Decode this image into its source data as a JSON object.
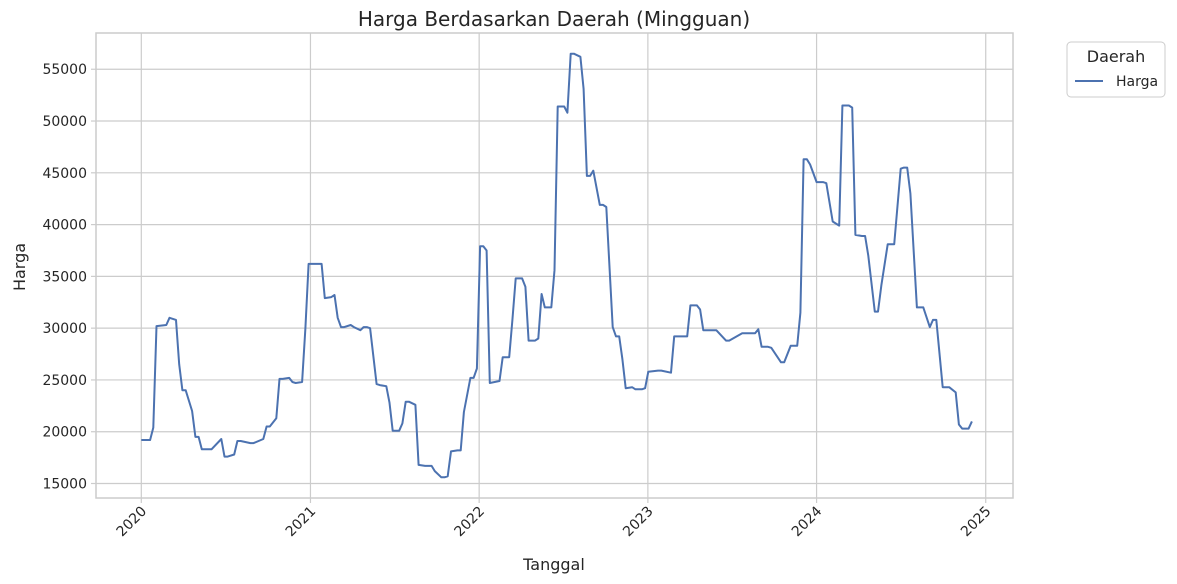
{
  "chart_data": {
    "type": "line",
    "title": "Harga Berdasarkan Daerah (Mingguan)",
    "xlabel": "Tanggal",
    "ylabel": "Harga",
    "xlim": [
      "2019-09-25",
      "2025-03-01"
    ],
    "ylim": [
      13600,
      58500
    ],
    "x_ticks": [
      "2020",
      "2021",
      "2022",
      "2023",
      "2024",
      "2025"
    ],
    "y_ticks": [
      15000,
      20000,
      25000,
      30000,
      35000,
      40000,
      45000,
      50000,
      55000
    ],
    "grid": true,
    "legend": {
      "title": "Daerah",
      "placement": "upper right, outside plot",
      "entries": [
        "Harga"
      ]
    },
    "colors": {
      "series": "#4c72b0",
      "grid": "#cccccc",
      "spine": "#cccccc"
    },
    "series": [
      {
        "name": "Harga",
        "x": [
          "2020-01-01",
          "2020-01-20",
          "2020-01-27",
          "2020-02-03",
          "2020-02-24",
          "2020-03-02",
          "2020-03-16",
          "2020-03-23",
          "2020-03-30",
          "2020-04-06",
          "2020-04-20",
          "2020-04-27",
          "2020-05-04",
          "2020-05-11",
          "2020-05-25",
          "2020-06-01",
          "2020-06-22",
          "2020-06-29",
          "2020-07-06",
          "2020-07-20",
          "2020-07-27",
          "2020-08-03",
          "2020-08-24",
          "2020-08-31",
          "2020-09-21",
          "2020-09-28",
          "2020-10-05",
          "2020-10-19",
          "2020-10-26",
          "2020-11-02",
          "2020-11-16",
          "2020-11-23",
          "2020-11-30",
          "2020-12-14",
          "2020-12-21",
          "2020-12-28",
          "2021-01-04",
          "2021-01-25",
          "2021-02-01",
          "2021-02-15",
          "2021-02-22",
          "2021-03-01",
          "2021-03-08",
          "2021-03-15",
          "2021-03-29",
          "2021-04-05",
          "2021-04-19",
          "2021-04-26",
          "2021-05-03",
          "2021-05-10",
          "2021-05-24",
          "2021-05-31",
          "2021-06-14",
          "2021-06-21",
          "2021-06-28",
          "2021-07-12",
          "2021-07-19",
          "2021-07-26",
          "2021-08-02",
          "2021-08-16",
          "2021-08-23",
          "2021-09-06",
          "2021-09-20",
          "2021-09-27",
          "2021-10-11",
          "2021-10-18",
          "2021-10-25",
          "2021-11-01",
          "2021-11-15",
          "2021-11-22",
          "2021-11-29",
          "2021-12-13",
          "2021-12-20",
          "2021-12-27",
          "2022-01-03",
          "2022-01-10",
          "2022-01-17",
          "2022-01-24",
          "2022-02-14",
          "2022-02-21",
          "2022-03-07",
          "2022-03-14",
          "2022-03-21",
          "2022-04-04",
          "2022-04-11",
          "2022-04-18",
          "2022-05-02",
          "2022-05-09",
          "2022-05-16",
          "2022-05-23",
          "2022-06-06",
          "2022-06-13",
          "2022-06-20",
          "2022-07-04",
          "2022-07-11",
          "2022-07-18",
          "2022-07-25",
          "2022-08-08",
          "2022-08-15",
          "2022-08-22",
          "2022-08-29",
          "2022-09-05",
          "2022-09-19",
          "2022-09-26",
          "2022-10-03",
          "2022-10-17",
          "2022-10-24",
          "2022-10-31",
          "2022-11-07",
          "2022-11-14",
          "2022-11-28",
          "2022-12-05",
          "2022-12-19",
          "2022-12-26",
          "2023-01-02",
          "2023-01-23",
          "2023-01-30",
          "2023-02-20",
          "2023-02-27",
          "2023-03-06",
          "2023-03-27",
          "2023-04-03",
          "2023-04-17",
          "2023-04-24",
          "2023-05-01",
          "2023-05-22",
          "2023-05-29",
          "2023-06-19",
          "2023-06-26",
          "2023-07-24",
          "2023-07-31",
          "2023-08-21",
          "2023-08-28",
          "2023-09-04",
          "2023-09-18",
          "2023-09-25",
          "2023-10-16",
          "2023-10-23",
          "2023-11-06",
          "2023-11-13",
          "2023-11-20",
          "2023-11-27",
          "2023-12-04",
          "2023-12-11",
          "2023-12-18",
          "2024-01-01",
          "2024-01-15",
          "2024-01-22",
          "2024-02-05",
          "2024-02-12",
          "2024-02-19",
          "2024-02-26",
          "2024-03-11",
          "2024-03-18",
          "2024-03-25",
          "2024-04-08",
          "2024-04-15",
          "2024-04-22",
          "2024-05-06",
          "2024-05-13",
          "2024-05-20",
          "2024-06-03",
          "2024-06-10",
          "2024-06-17",
          "2024-07-01",
          "2024-07-08",
          "2024-07-15",
          "2024-07-22",
          "2024-08-05",
          "2024-08-12",
          "2024-08-19",
          "2024-09-02",
          "2024-09-09",
          "2024-09-16",
          "2024-09-30",
          "2024-10-07",
          "2024-10-14",
          "2024-10-28",
          "2024-11-04",
          "2024-11-11",
          "2024-11-25",
          "2024-12-02"
        ],
        "values": [
          19200,
          19200,
          20400,
          30200,
          30300,
          31000,
          30800,
          26500,
          24000,
          24000,
          22000,
          19500,
          19500,
          18300,
          18300,
          18300,
          19300,
          17600,
          17600,
          17800,
          19100,
          19100,
          18900,
          18900,
          19300,
          20500,
          20500,
          21300,
          25100,
          25100,
          25200,
          24800,
          24700,
          24800,
          30000,
          36200,
          36200,
          36200,
          32900,
          33000,
          33200,
          31000,
          30100,
          30100,
          30300,
          30100,
          29800,
          30100,
          30100,
          30000,
          24600,
          24500,
          24400,
          22800,
          20100,
          20100,
          20800,
          22900,
          22900,
          22600,
          16800,
          16700,
          16700,
          16200,
          15600,
          15600,
          15700,
          18100,
          18200,
          18200,
          21900,
          25200,
          25200,
          26100,
          37900,
          37900,
          37500,
          24700,
          24900,
          27200,
          27200,
          30800,
          34800,
          34800,
          34000,
          28800,
          28800,
          29000,
          33300,
          32000,
          32000,
          35600,
          51400,
          51400,
          50800,
          56500,
          56500,
          56200,
          53100,
          44700,
          44700,
          45200,
          41900,
          41900,
          41700,
          30100,
          29200,
          29200,
          27000,
          24200,
          24300,
          24100,
          24100,
          24200,
          25800,
          25900,
          25900,
          25700,
          29200,
          29200,
          29200,
          32200,
          32200,
          31800,
          29800,
          29800,
          29800,
          28800,
          28800,
          29500,
          29500,
          29500,
          29900,
          28200,
          28200,
          28100,
          26700,
          26700,
          28300,
          28300,
          28300,
          31500,
          46300,
          46300,
          45800,
          44100,
          44100,
          44000,
          40300,
          40100,
          39900,
          51500,
          51500,
          51300,
          39000,
          38900,
          38900,
          37000,
          31600,
          31600,
          34100,
          38100,
          38100,
          38100,
          45400,
          45500,
          45500,
          43000,
          32000,
          32000,
          32000,
          30100,
          30800,
          30800,
          24300,
          24300,
          24300,
          23800,
          20700,
          20300,
          20300,
          21000
        ]
      }
    ]
  }
}
